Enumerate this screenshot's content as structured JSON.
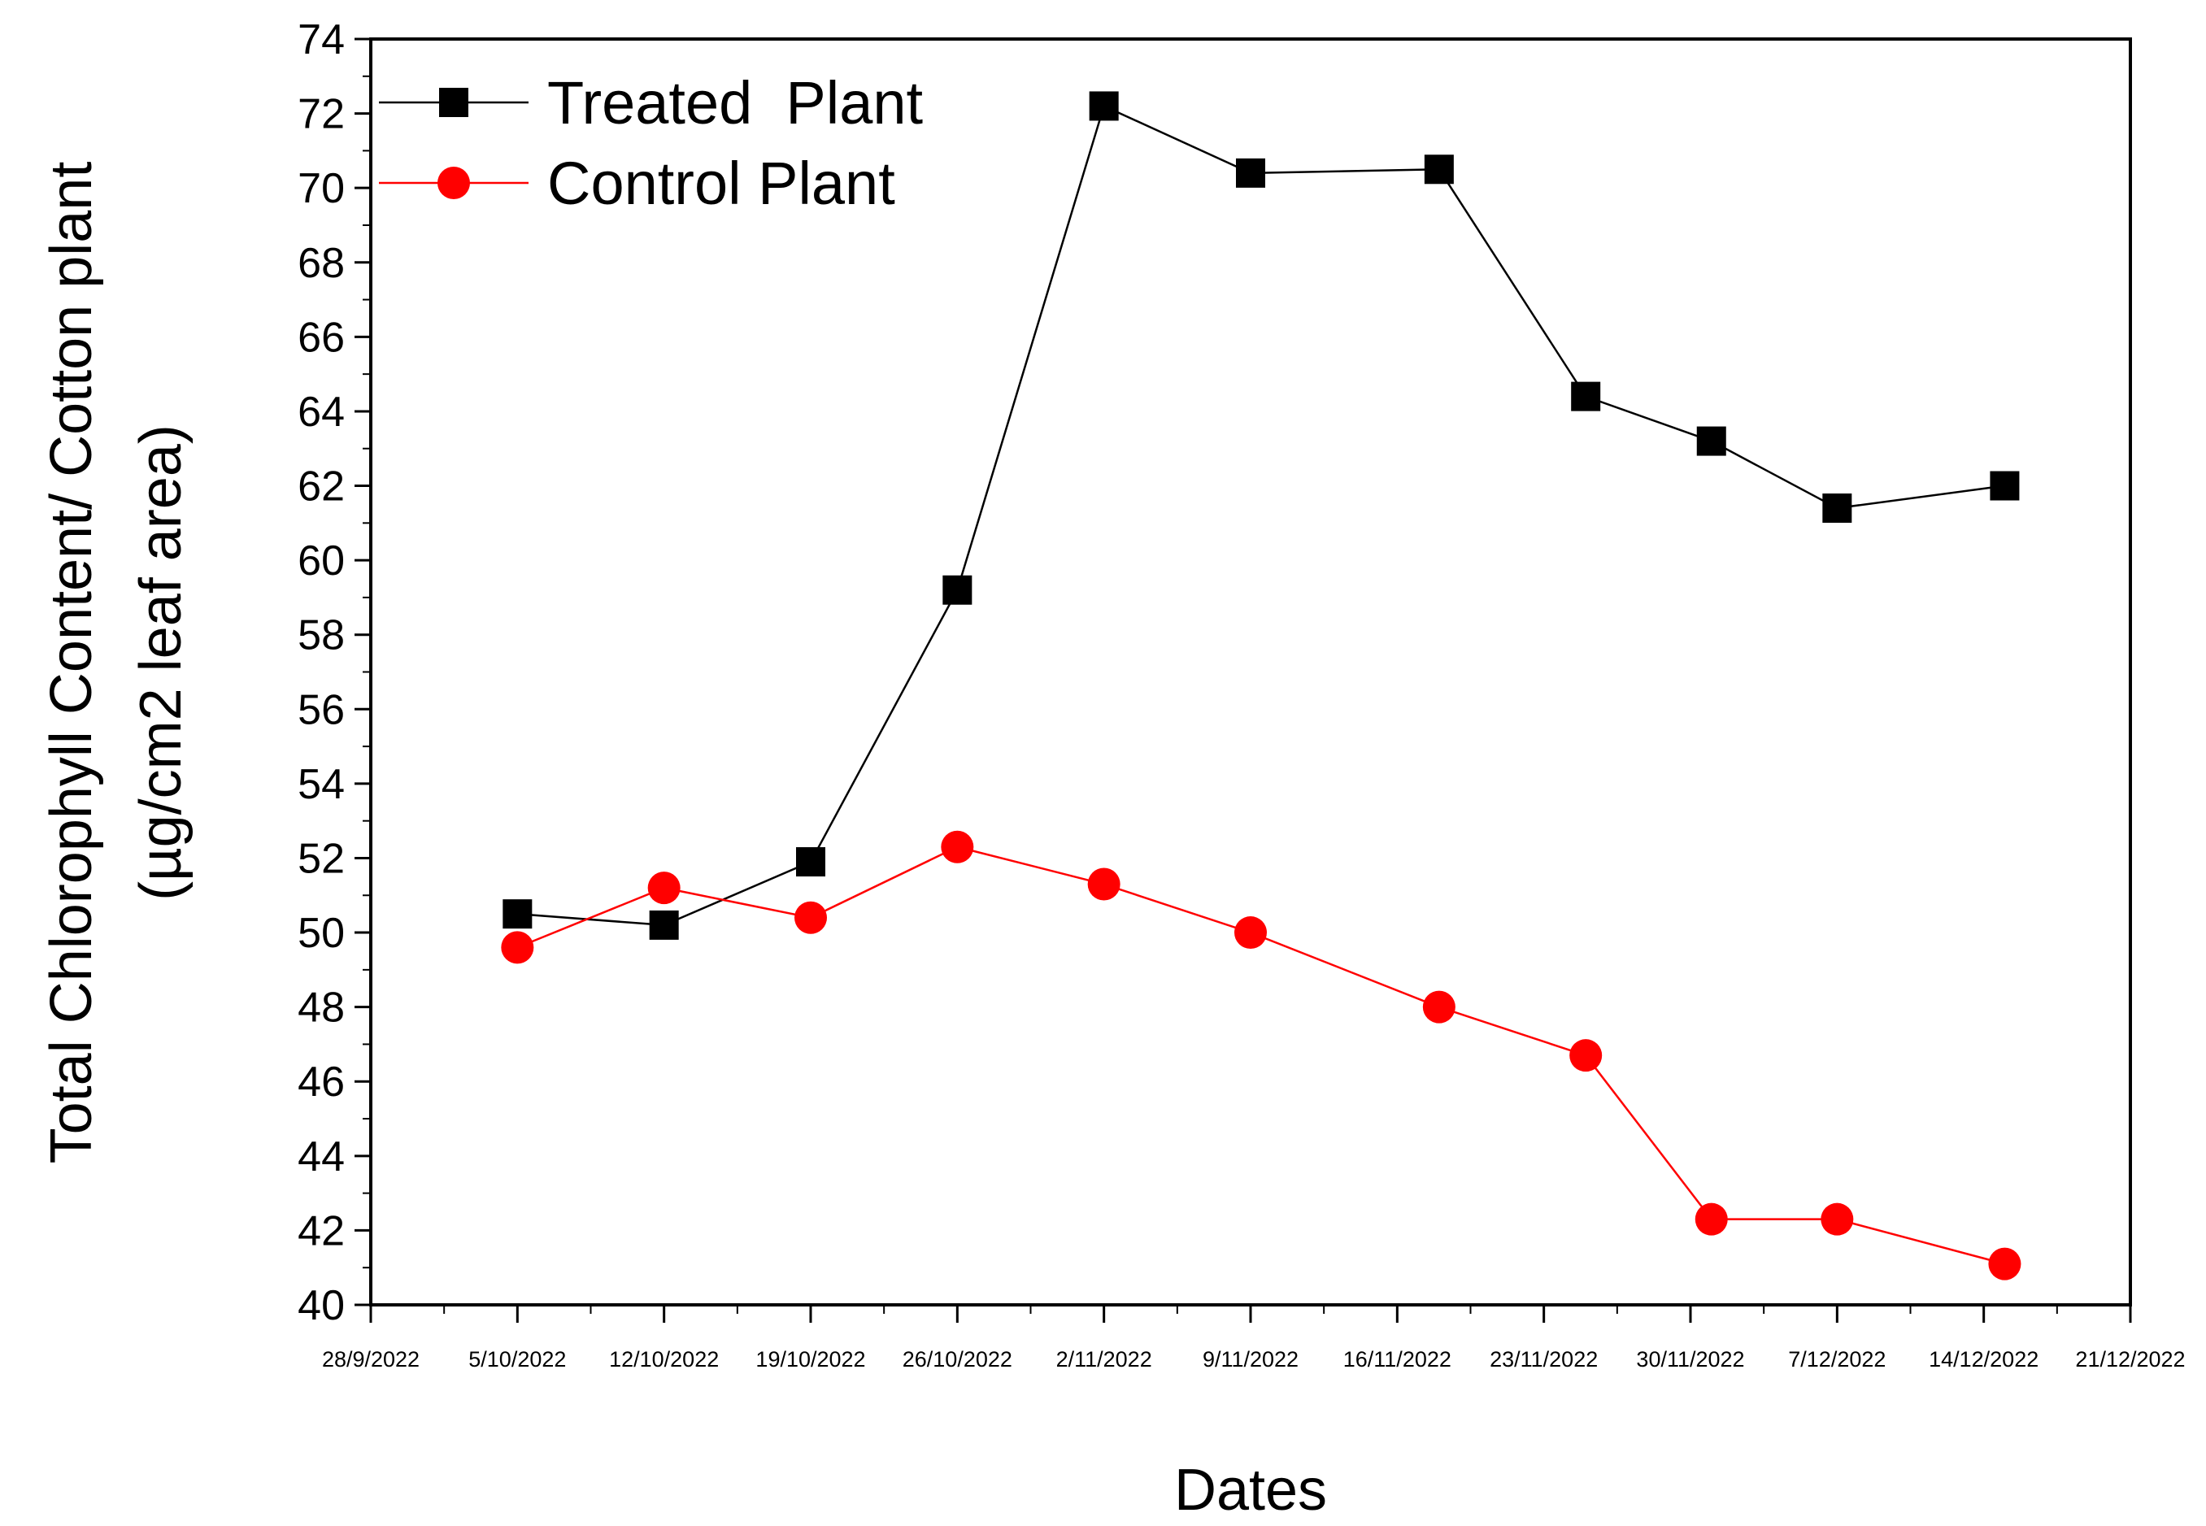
{
  "chart_data": {
    "type": "line",
    "title": "",
    "xlabel": "Dates",
    "ylabel_line1": "Total Chlorophyll Content/ Cotton plant",
    "ylabel_line2": "(µg/cm2 leaf area)",
    "ylim": [
      40,
      74
    ],
    "y_ticks": [
      "40",
      "42",
      "44",
      "46",
      "48",
      "50",
      "52",
      "54",
      "56",
      "58",
      "60",
      "62",
      "64",
      "66",
      "68",
      "70",
      "72",
      "74"
    ],
    "x_ticks": [
      "28/9/2022",
      "5/10/2022",
      "12/10/2022",
      "19/10/2022",
      "26/10/2022",
      "2/11/2022",
      "9/11/2022",
      "16/11/2022",
      "23/11/2022",
      "30/11/2022",
      "7/12/2022",
      "14/12/2022",
      "21/12/2022"
    ],
    "xlim_days": [
      0,
      84
    ],
    "legend_position": "top-left",
    "series": [
      {
        "name": "Treated  Plant",
        "color": "#000000",
        "marker": "square",
        "x_days": [
          7,
          14,
          21,
          28,
          35,
          42,
          51,
          58,
          64,
          70,
          78
        ],
        "values": [
          50.5,
          50.2,
          51.9,
          59.2,
          72.2,
          70.4,
          70.5,
          64.4,
          63.2,
          61.4,
          62.0
        ]
      },
      {
        "name": "Control Plant",
        "color": "#ff0000",
        "marker": "circle",
        "x_days": [
          7,
          14,
          21,
          28,
          35,
          42,
          51,
          58,
          64,
          70,
          78
        ],
        "values": [
          49.6,
          51.2,
          50.4,
          52.3,
          51.3,
          50.0,
          48.0,
          46.7,
          42.3,
          42.3,
          41.1
        ]
      }
    ]
  }
}
